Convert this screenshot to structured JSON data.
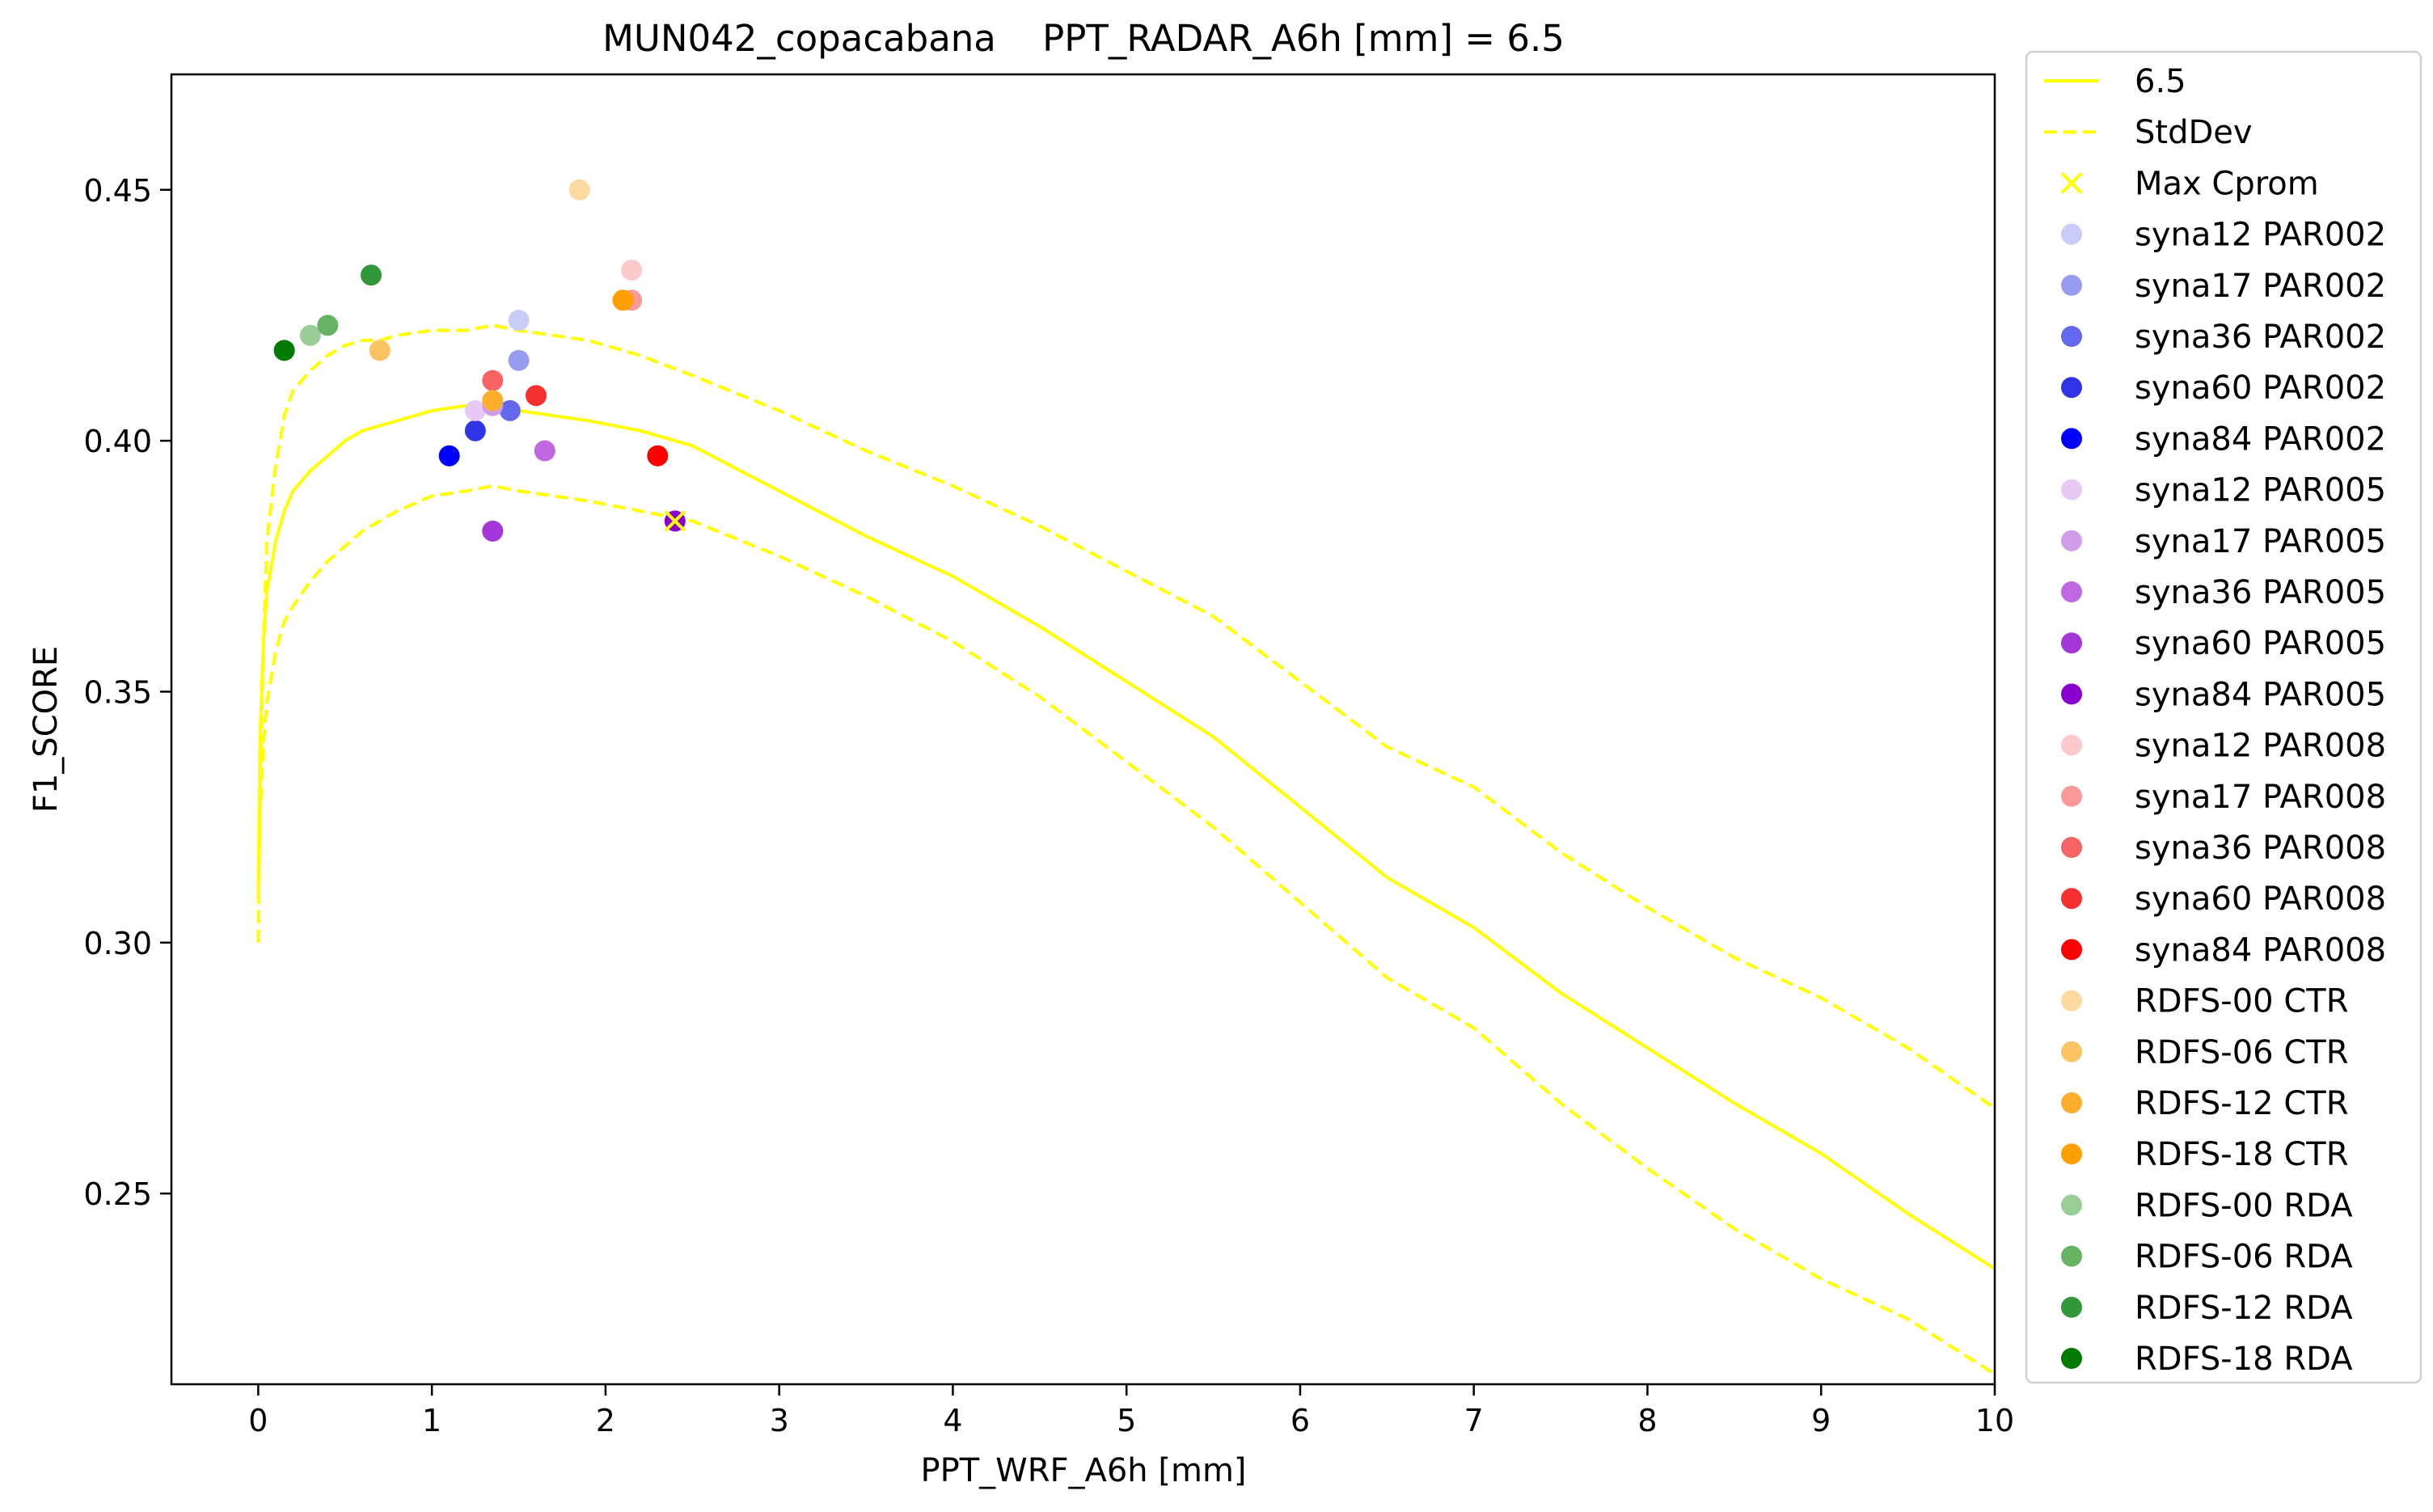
{
  "chart_data": {
    "type": "line",
    "title": "MUN042_copacabana    PPT_RADAR_A6h [mm] = 6.5",
    "xlabel": "PPT_WRF_A6h [mm]",
    "ylabel": "F1_SCORE",
    "xlim": [
      -0.5,
      10
    ],
    "ylim": [
      0.212,
      0.473
    ],
    "xticks": [
      0,
      1,
      2,
      3,
      4,
      5,
      6,
      7,
      8,
      9,
      10
    ],
    "yticks": [
      0.25,
      0.3,
      0.35,
      0.4,
      0.45
    ],
    "ytick_labels": [
      "0.25",
      "0.30",
      "0.35",
      "0.40",
      "0.45"
    ],
    "grid": false,
    "legend_position": "outside-right",
    "line_color": "#ffff00",
    "series": [
      {
        "name": "6.5",
        "style": "solid",
        "x": [
          0.0,
          0.01,
          0.03,
          0.05,
          0.1,
          0.15,
          0.2,
          0.3,
          0.4,
          0.5,
          0.6,
          0.7,
          0.8,
          1.0,
          1.2,
          1.35,
          1.5,
          1.7,
          1.9,
          2.2,
          2.5,
          3.0,
          3.5,
          4.0,
          4.5,
          5.0,
          5.5,
          6.0,
          6.5,
          7.0,
          7.5,
          8.0,
          8.5,
          9.0,
          9.5,
          10.0
        ],
        "y": [
          0.309,
          0.34,
          0.36,
          0.37,
          0.38,
          0.386,
          0.39,
          0.394,
          0.397,
          0.4,
          0.402,
          0.403,
          0.404,
          0.406,
          0.407,
          0.407,
          0.406,
          0.405,
          0.404,
          0.402,
          0.399,
          0.39,
          0.381,
          0.373,
          0.363,
          0.352,
          0.341,
          0.327,
          0.313,
          0.303,
          0.29,
          0.279,
          0.268,
          0.258,
          0.246,
          0.235
        ]
      },
      {
        "name": "StdDev",
        "style": "dashed",
        "x": [
          0.0,
          0.01,
          0.03,
          0.05,
          0.1,
          0.15,
          0.2,
          0.3,
          0.4,
          0.5,
          0.6,
          0.7,
          0.8,
          1.0,
          1.2,
          1.35,
          1.5,
          1.7,
          1.9,
          2.2,
          2.5,
          3.0,
          3.5,
          4.0,
          4.5,
          5.0,
          5.5,
          6.0,
          6.5,
          7.0,
          7.5,
          8.0,
          8.5,
          9.0,
          9.5,
          10.0
        ],
        "y": [
          0.3,
          0.33,
          0.36,
          0.38,
          0.395,
          0.405,
          0.41,
          0.414,
          0.417,
          0.419,
          0.42,
          0.42,
          0.421,
          0.422,
          0.422,
          0.423,
          0.422,
          0.421,
          0.42,
          0.417,
          0.413,
          0.406,
          0.398,
          0.391,
          0.383,
          0.374,
          0.365,
          0.352,
          0.339,
          0.331,
          0.318,
          0.307,
          0.297,
          0.289,
          0.279,
          0.267
        ]
      },
      {
        "name": "",
        "style": "dashed",
        "x": [
          0.0,
          0.01,
          0.03,
          0.05,
          0.1,
          0.15,
          0.2,
          0.3,
          0.4,
          0.5,
          0.6,
          0.7,
          0.8,
          1.0,
          1.2,
          1.35,
          1.5,
          1.7,
          1.9,
          2.2,
          2.5,
          3.0,
          3.5,
          4.0,
          4.5,
          5.0,
          5.5,
          6.0,
          6.5,
          7.0,
          7.5,
          8.0,
          8.5,
          9.0,
          9.5,
          10.0
        ],
        "y": [
          0.309,
          0.325,
          0.34,
          0.348,
          0.358,
          0.364,
          0.367,
          0.372,
          0.376,
          0.379,
          0.382,
          0.384,
          0.386,
          0.389,
          0.39,
          0.391,
          0.39,
          0.389,
          0.388,
          0.386,
          0.384,
          0.377,
          0.369,
          0.36,
          0.349,
          0.336,
          0.323,
          0.308,
          0.293,
          0.283,
          0.268,
          0.255,
          0.243,
          0.233,
          0.225,
          0.214
        ]
      }
    ],
    "max_cprom": {
      "name": "Max Cprom",
      "x": 2.4,
      "y": 0.384,
      "color": "#ffff00"
    },
    "scatter": [
      {
        "name": "syna12 PAR002",
        "color": "#c9ccf7",
        "x": 1.5,
        "y": 0.424
      },
      {
        "name": "syna17 PAR002",
        "color": "#979cf1",
        "x": 1.5,
        "y": 0.416
      },
      {
        "name": "syna36 PAR002",
        "color": "#6368ec",
        "x": 1.45,
        "y": 0.406
      },
      {
        "name": "syna60 PAR002",
        "color": "#2f35e6",
        "x": 1.25,
        "y": 0.402
      },
      {
        "name": "syna84 PAR002",
        "color": "#0000ff",
        "x": 1.1,
        "y": 0.397
      },
      {
        "name": "syna12 PAR005",
        "color": "#e8c9f5",
        "x": 1.25,
        "y": 0.406
      },
      {
        "name": "syna17 PAR005",
        "color": "#d39ceb",
        "x": 1.35,
        "y": 0.407
      },
      {
        "name": "syna36 PAR005",
        "color": "#bf68e1",
        "x": 1.65,
        "y": 0.398
      },
      {
        "name": "syna60 PAR005",
        "color": "#a437d9",
        "x": 1.35,
        "y": 0.382
      },
      {
        "name": "syna84 PAR005",
        "color": "#8a00cc",
        "x": 2.4,
        "y": 0.384
      },
      {
        "name": "syna12 PAR008",
        "color": "#fccaca",
        "x": 2.15,
        "y": 0.434
      },
      {
        "name": "syna17 PAR008",
        "color": "#fb9898",
        "x": 2.15,
        "y": 0.428
      },
      {
        "name": "syna36 PAR008",
        "color": "#f86464",
        "x": 1.35,
        "y": 0.412
      },
      {
        "name": "syna60 PAR008",
        "color": "#f43030",
        "x": 1.6,
        "y": 0.409
      },
      {
        "name": "syna84 PAR008",
        "color": "#ff0000",
        "x": 2.3,
        "y": 0.397
      },
      {
        "name": " RDFS-00 CTR",
        "color": "#fcd9a0",
        "x": 1.85,
        "y": 0.45
      },
      {
        "name": " RDFS-06 CTR",
        "color": "#fbc462",
        "x": 0.7,
        "y": 0.418
      },
      {
        "name": " RDFS-12 CTR",
        "color": "#fcae2c",
        "x": 1.35,
        "y": 0.408
      },
      {
        "name": " RDFS-18 CTR",
        "color": "#ffa000",
        "x": 2.1,
        "y": 0.428
      },
      {
        "name": " RDFS-00 RDA",
        "color": "#9acd98",
        "x": 0.3,
        "y": 0.421
      },
      {
        "name": " RDFS-06 RDA",
        "color": "#65b363",
        "x": 0.4,
        "y": 0.423
      },
      {
        "name": " RDFS-12 RDA",
        "color": "#32973a",
        "x": 0.65,
        "y": 0.433
      },
      {
        "name": " RDFS-18 RDA",
        "color": "#007a00",
        "x": 0.15,
        "y": 0.418
      }
    ]
  }
}
